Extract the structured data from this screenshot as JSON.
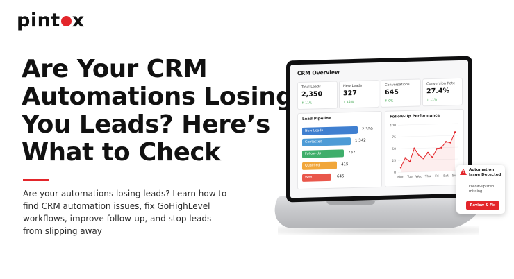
{
  "brand": {
    "logo_prefix": "pint",
    "logo_suffix": "x",
    "accent": "#e3262b"
  },
  "headline": [
    "Are Your CRM",
    "Automations Losing",
    "You Leads? Here’s",
    "What to Check"
  ],
  "subtitle": "Are your automations losing leads? Learn how to find CRM automation issues, fix GoHighLevel workflows, improve follow-up, and stop leads from slipping away",
  "dashboard": {
    "title": "CRM Overview",
    "stats": [
      {
        "label": "Total Leads",
        "value": "2,350",
        "change": "↑ 11%"
      },
      {
        "label": "New Leads",
        "value": "327",
        "change": "↑ 12%"
      },
      {
        "label": "Conversations",
        "value": "645",
        "change": "↑ 9%"
      },
      {
        "label": "Conversion Rate",
        "value": "27.4%",
        "change": "↑ 11%"
      }
    ],
    "pipeline": {
      "title": "Lead Pipeline",
      "stages": [
        {
          "label": "New Leads",
          "value": "2,350",
          "color": "#3f7fd0"
        },
        {
          "label": "Contacted",
          "value": "1,342",
          "color": "#4d9bd6"
        },
        {
          "label": "Follow-Up",
          "value": "732",
          "color": "#3fae6b"
        },
        {
          "label": "Qualified",
          "value": "415",
          "color": "#f1a63a"
        },
        {
          "label": "Won",
          "value": "645",
          "color": "#e9574b"
        }
      ]
    },
    "performance": {
      "title": "Follow-Up Performance",
      "y_ticks": [
        "100",
        "75",
        "50",
        "25",
        "0"
      ],
      "x_ticks": [
        "Mon",
        "Tue",
        "Wed",
        "Thu",
        "Fri",
        "Sat",
        "Sun"
      ]
    }
  },
  "chart_data": {
    "type": "line",
    "title": "Follow-Up Performance",
    "x": [
      "Mon",
      "",
      "Tue",
      "",
      "Wed",
      "",
      "Thu",
      "",
      "Fri",
      "",
      "Sat",
      "",
      "Sun"
    ],
    "values": [
      10,
      30,
      22,
      50,
      35,
      28,
      40,
      30,
      48,
      50,
      62,
      60,
      82
    ],
    "ylim": [
      0,
      100
    ],
    "color": "#e3262b"
  },
  "alert": {
    "title": "Automation Issue Detected",
    "text": "Follow-up step missing",
    "button": "Review & Fix"
  }
}
